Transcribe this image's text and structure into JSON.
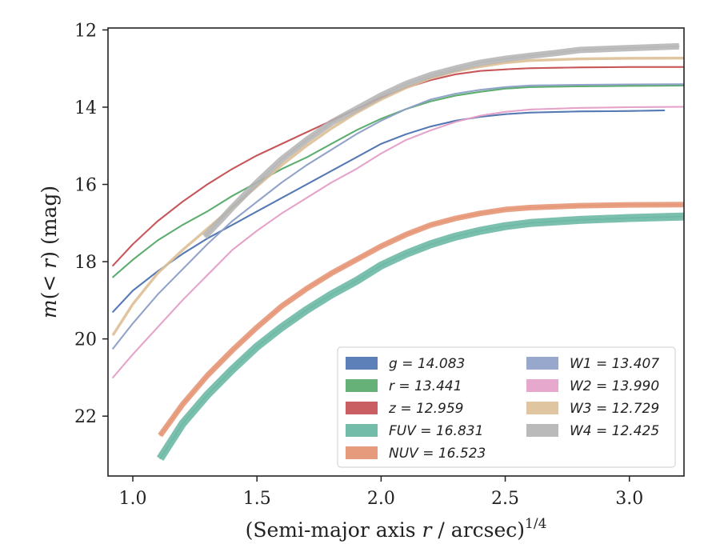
{
  "chart_data": {
    "type": "line",
    "xlabel": "(Semi-major axis r / arcsec)^1/4",
    "ylabel": "m(< r) (mag)",
    "xlim": [
      0.9,
      3.22
    ],
    "ylim": [
      23.55,
      11.95
    ],
    "y_inverted": true,
    "xticks": [
      "1.0",
      "1.5",
      "2.0",
      "2.5",
      "3.0"
    ],
    "yticks": [
      "12",
      "14",
      "16",
      "18",
      "20",
      "22"
    ],
    "legend_position": "lower-right",
    "series": [
      {
        "name": "g",
        "label": "g = 14.083",
        "color": "#4c72b0",
        "x": [
          0.92,
          1.0,
          1.1,
          1.2,
          1.3,
          1.4,
          1.5,
          1.6,
          1.7,
          1.8,
          1.9,
          2.0,
          2.1,
          2.2,
          2.3,
          2.4,
          2.5,
          2.6,
          2.8,
          3.0,
          3.14
        ],
        "values": [
          19.3,
          18.75,
          18.25,
          17.8,
          17.4,
          17.05,
          16.7,
          16.35,
          16.0,
          15.65,
          15.3,
          14.95,
          14.7,
          14.5,
          14.35,
          14.25,
          14.18,
          14.14,
          14.11,
          14.1,
          14.083
        ]
      },
      {
        "name": "r",
        "label": "r = 13.441",
        "color": "#55a868",
        "x": [
          0.92,
          1.0,
          1.1,
          1.2,
          1.3,
          1.4,
          1.5,
          1.6,
          1.7,
          1.8,
          1.9,
          2.0,
          2.1,
          2.2,
          2.3,
          2.4,
          2.5,
          2.6,
          2.8,
          3.0,
          3.22
        ],
        "values": [
          18.4,
          17.95,
          17.45,
          17.05,
          16.7,
          16.3,
          15.95,
          15.6,
          15.3,
          14.95,
          14.6,
          14.3,
          14.05,
          13.85,
          13.7,
          13.6,
          13.52,
          13.48,
          13.46,
          13.45,
          13.441
        ]
      },
      {
        "name": "z",
        "label": "z = 12.959",
        "color": "#c44e52",
        "x": [
          0.92,
          1.0,
          1.1,
          1.2,
          1.3,
          1.4,
          1.5,
          1.6,
          1.7,
          1.8,
          1.9,
          2.0,
          2.1,
          2.2,
          2.3,
          2.4,
          2.5,
          2.6,
          2.8,
          3.0,
          3.22
        ],
        "values": [
          18.1,
          17.55,
          16.95,
          16.45,
          16.0,
          15.6,
          15.25,
          14.95,
          14.65,
          14.35,
          14.05,
          13.75,
          13.5,
          13.3,
          13.15,
          13.06,
          13.02,
          12.99,
          12.97,
          12.96,
          12.959
        ]
      },
      {
        "name": "FUV",
        "label": "FUV = 16.831",
        "color": "#64b5a0",
        "x": [
          1.11,
          1.2,
          1.3,
          1.4,
          1.5,
          1.6,
          1.7,
          1.8,
          1.9,
          2.0,
          2.1,
          2.2,
          2.3,
          2.4,
          2.5,
          2.6,
          2.8,
          3.0,
          3.22
        ],
        "values": [
          23.1,
          22.2,
          21.45,
          20.8,
          20.2,
          19.7,
          19.25,
          18.85,
          18.5,
          18.1,
          17.8,
          17.55,
          17.35,
          17.2,
          17.08,
          17.0,
          16.92,
          16.87,
          16.831
        ]
      },
      {
        "name": "NUV",
        "label": "NUV = 16.523",
        "color": "#e4906f",
        "x": [
          1.11,
          1.2,
          1.3,
          1.4,
          1.5,
          1.6,
          1.7,
          1.8,
          1.9,
          2.0,
          2.1,
          2.2,
          2.3,
          2.4,
          2.5,
          2.6,
          2.8,
          3.0,
          3.22
        ],
        "values": [
          22.5,
          21.7,
          20.95,
          20.3,
          19.7,
          19.15,
          18.7,
          18.3,
          17.95,
          17.6,
          17.3,
          17.05,
          16.88,
          16.75,
          16.65,
          16.6,
          16.55,
          16.53,
          16.523
        ]
      },
      {
        "name": "W1",
        "label": "W1 = 13.407",
        "color": "#8c9fc7",
        "x": [
          0.92,
          1.0,
          1.1,
          1.2,
          1.3,
          1.4,
          1.5,
          1.6,
          1.7,
          1.8,
          1.9,
          2.0,
          2.1,
          2.2,
          2.3,
          2.4,
          2.5,
          2.6,
          2.8,
          3.0,
          3.22
        ],
        "values": [
          20.25,
          19.6,
          18.85,
          18.2,
          17.55,
          16.95,
          16.45,
          15.95,
          15.5,
          15.1,
          14.7,
          14.35,
          14.05,
          13.8,
          13.65,
          13.55,
          13.48,
          13.44,
          13.42,
          13.41,
          13.407
        ]
      },
      {
        "name": "W2",
        "label": "W2 = 13.990",
        "color": "#e39ec8",
        "x": [
          0.92,
          1.0,
          1.1,
          1.2,
          1.3,
          1.4,
          1.5,
          1.6,
          1.7,
          1.8,
          1.9,
          2.0,
          2.1,
          2.2,
          2.3,
          2.4,
          2.5,
          2.6,
          2.8,
          3.0,
          3.22
        ],
        "values": [
          21.0,
          20.4,
          19.7,
          19.0,
          18.35,
          17.7,
          17.2,
          16.75,
          16.35,
          15.95,
          15.6,
          15.2,
          14.85,
          14.6,
          14.38,
          14.22,
          14.12,
          14.06,
          14.02,
          14.0,
          13.99
        ]
      },
      {
        "name": "W3",
        "label": "W3 = 12.729",
        "color": "#ddc096",
        "x": [
          0.92,
          1.0,
          1.1,
          1.2,
          1.3,
          1.4,
          1.5,
          1.6,
          1.7,
          1.8,
          1.9,
          2.0,
          2.1,
          2.2,
          2.3,
          2.4,
          2.5,
          2.6,
          2.8,
          3.0,
          3.22
        ],
        "values": [
          19.9,
          19.1,
          18.3,
          17.7,
          17.15,
          16.6,
          16.05,
          15.5,
          15.0,
          14.55,
          14.15,
          13.8,
          13.5,
          13.25,
          13.07,
          12.95,
          12.85,
          12.79,
          12.75,
          12.735,
          12.729
        ]
      },
      {
        "name": "W4",
        "label": "W4 = 12.425",
        "color": "#b3b3b3",
        "x": [
          1.29,
          1.35,
          1.4,
          1.5,
          1.6,
          1.7,
          1.8,
          1.9,
          2.0,
          2.1,
          2.2,
          2.3,
          2.4,
          2.5,
          2.6,
          2.7,
          2.8,
          3.0,
          3.2
        ],
        "values": [
          17.35,
          16.95,
          16.6,
          15.95,
          15.35,
          14.85,
          14.4,
          14.05,
          13.7,
          13.4,
          13.17,
          13.0,
          12.85,
          12.75,
          12.67,
          12.6,
          12.52,
          12.47,
          12.425
        ]
      }
    ],
    "legend": [
      "g = 14.083",
      "r = 13.441",
      "z = 12.959",
      "FUV = 16.831",
      "NUV = 16.523",
      "W1 = 13.407",
      "W2 = 13.990",
      "W3 = 12.729",
      "W4 = 12.425"
    ]
  }
}
